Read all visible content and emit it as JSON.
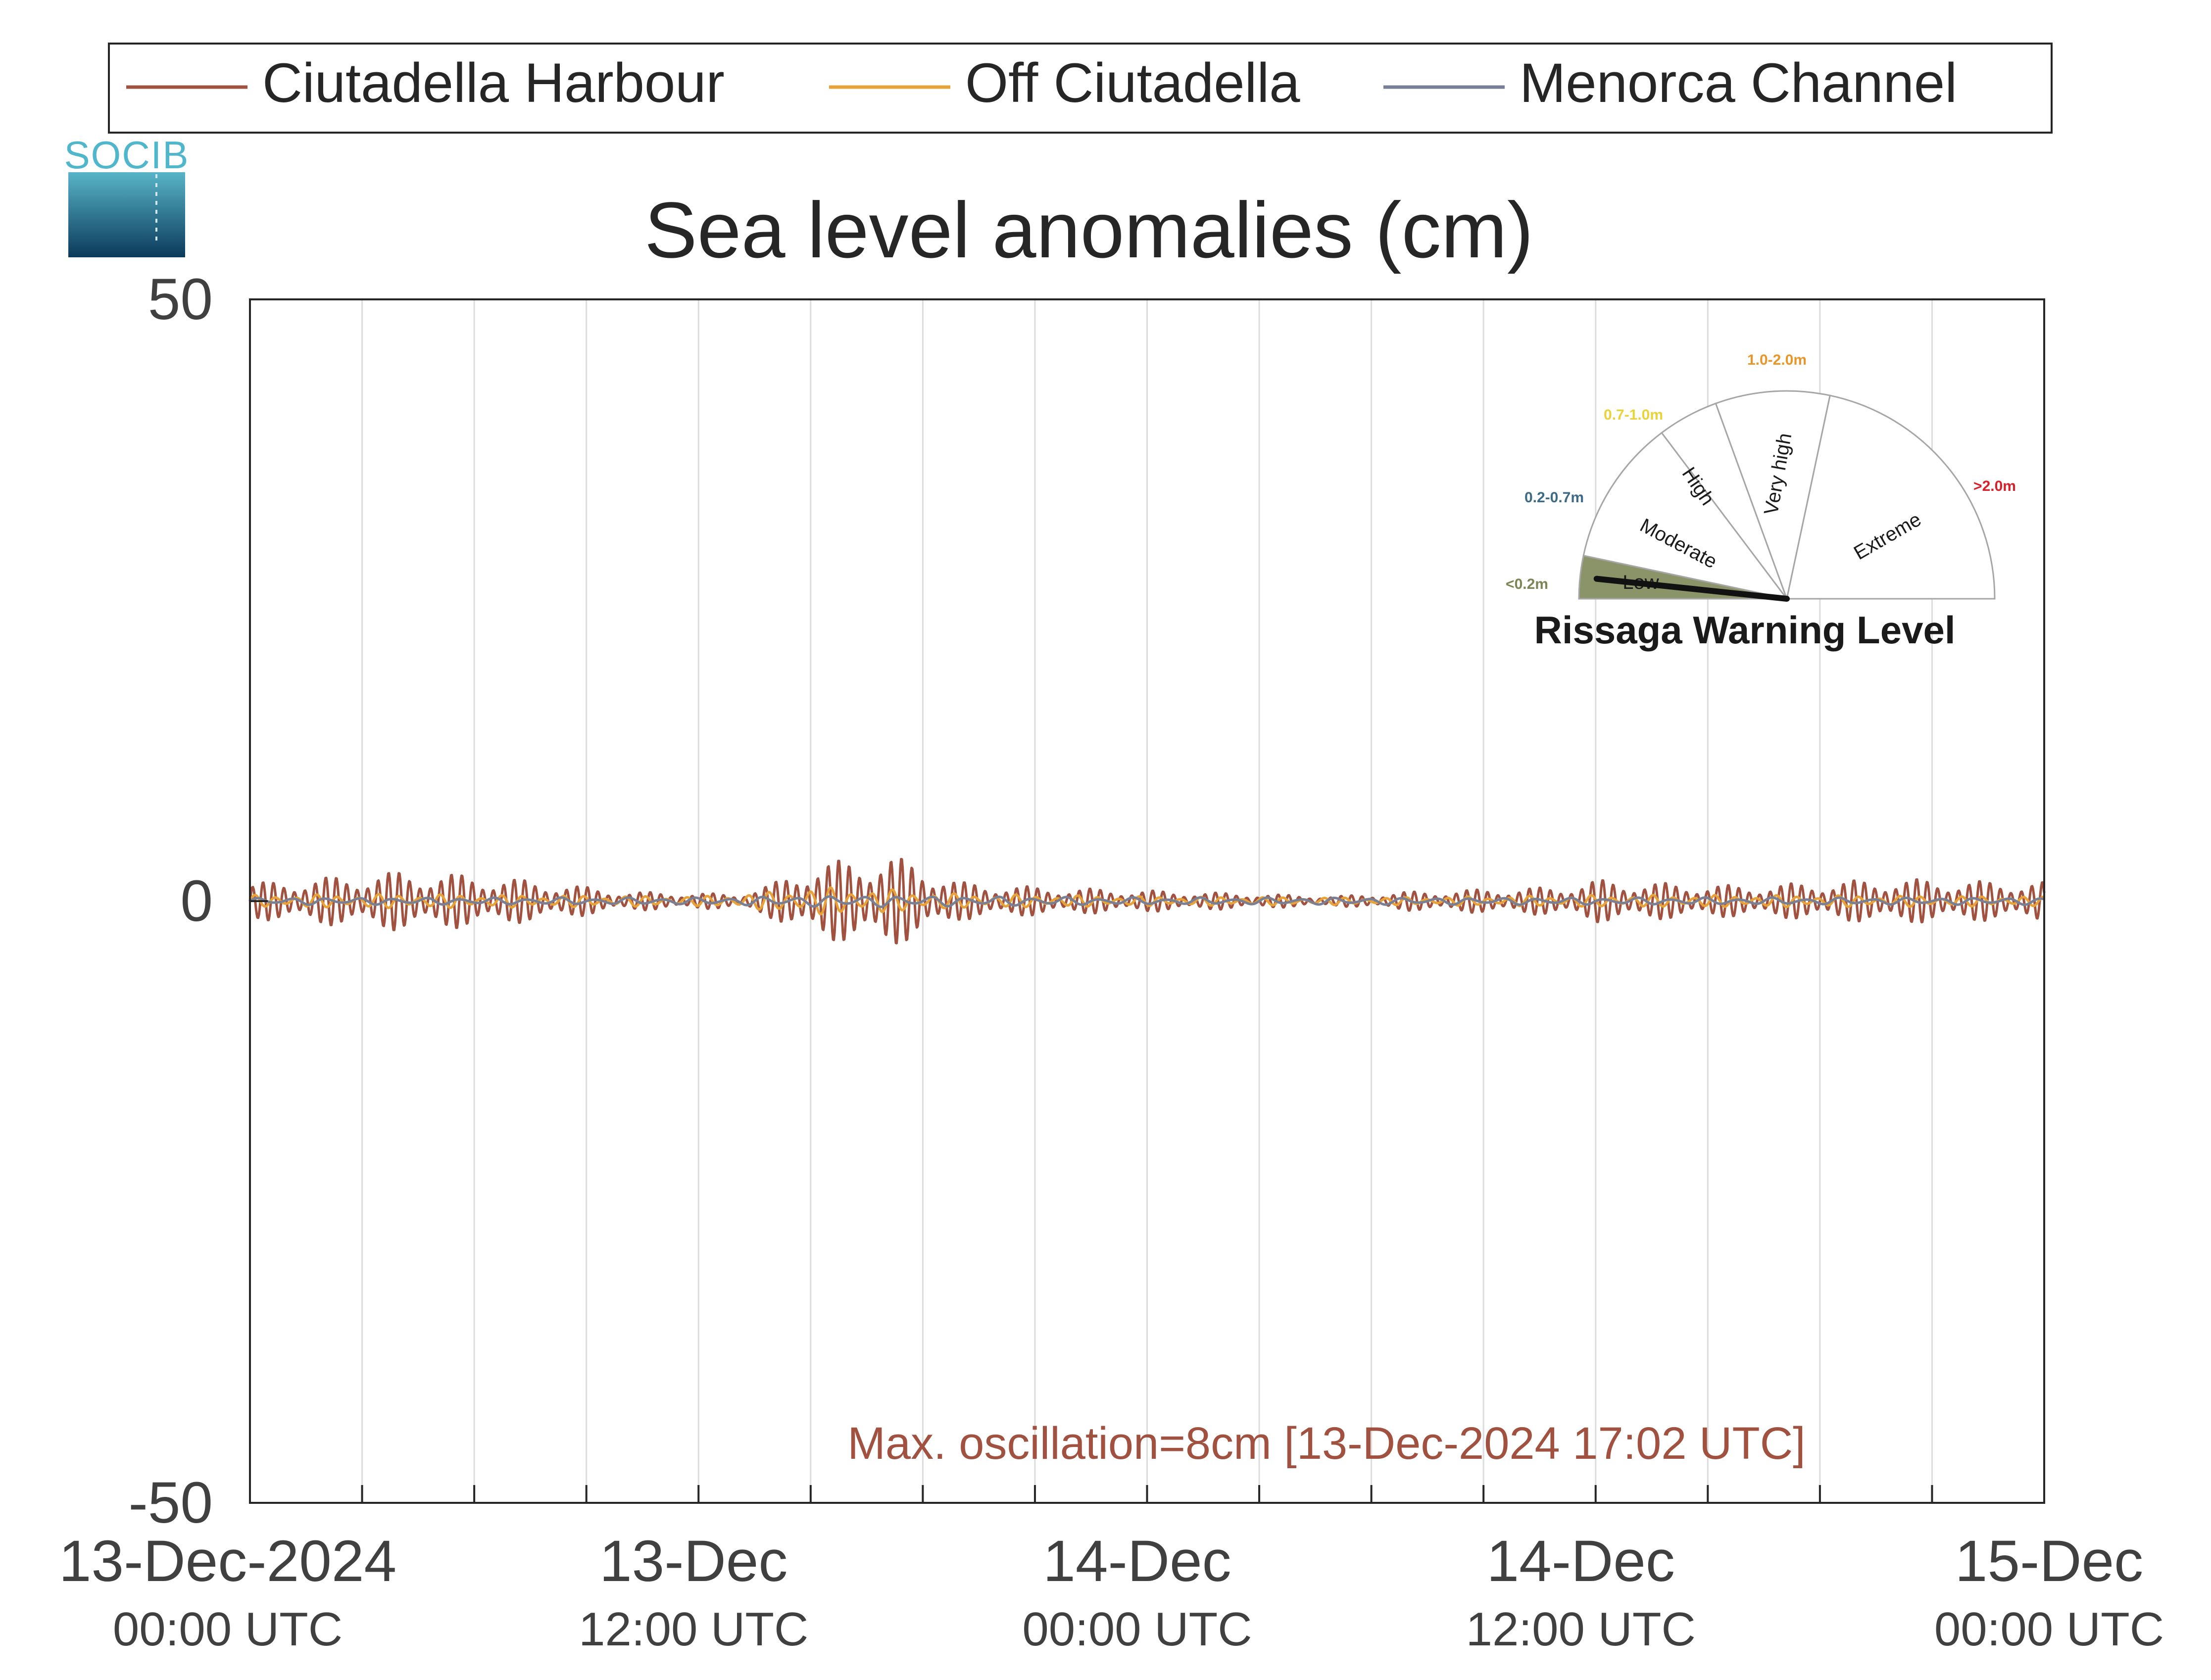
{
  "chart_data": {
    "type": "line",
    "title": "Sea level anomalies (cm)",
    "xlabel": "",
    "ylabel": "",
    "ylim": [
      -50,
      50
    ],
    "yticks": [
      -50,
      0,
      50
    ],
    "xlim": [
      "2024-12-13 00:00",
      "2024-12-15 00:00"
    ],
    "grid": "vertical",
    "legend": "top",
    "xticks": [
      {
        "t": 0,
        "line1": "13-Dec-2024",
        "line2": "00:00 UTC"
      },
      {
        "t": 12,
        "line1": "13-Dec",
        "line2": "12:00 UTC"
      },
      {
        "t": 24,
        "line1": "14-Dec",
        "line2": "00:00 UTC"
      },
      {
        "t": 36,
        "line1": "14-Dec",
        "line2": "12:00 UTC"
      },
      {
        "t": 48,
        "line1": "15-Dec",
        "line2": "00:00 UTC"
      }
    ],
    "series": [
      {
        "name": "Ciutadella Harbour",
        "color": "#a0513f",
        "amplitude_envelope": [
          [
            0,
            1.5
          ],
          [
            2,
            2.0
          ],
          [
            4,
            2.5
          ],
          [
            6,
            2.2
          ],
          [
            8,
            1.6
          ],
          [
            10,
            0.8
          ],
          [
            13,
            0.6
          ],
          [
            14,
            1.5
          ],
          [
            15,
            3.2
          ],
          [
            16,
            3.5
          ],
          [
            17,
            4.0
          ],
          [
            18,
            3.0
          ],
          [
            19,
            1.6
          ],
          [
            21,
            1.2
          ],
          [
            24,
            0.9
          ],
          [
            27,
            0.6
          ],
          [
            29,
            0.4
          ],
          [
            31,
            0.8
          ],
          [
            33,
            1.0
          ],
          [
            35,
            1.2
          ],
          [
            36,
            1.8
          ],
          [
            38,
            1.5
          ],
          [
            40,
            1.3
          ],
          [
            42,
            1.6
          ],
          [
            44,
            1.9
          ],
          [
            46,
            1.7
          ],
          [
            48,
            1.6
          ]
        ]
      },
      {
        "name": "Off Ciutadella",
        "color": "#e8a23a",
        "amplitude_envelope": [
          [
            0,
            0.5
          ],
          [
            4,
            0.6
          ],
          [
            8,
            0.5
          ],
          [
            12,
            0.4
          ],
          [
            14,
            0.8
          ],
          [
            15,
            1.2
          ],
          [
            17,
            1.0
          ],
          [
            19,
            0.6
          ],
          [
            24,
            0.4
          ],
          [
            30,
            0.3
          ],
          [
            36,
            0.5
          ],
          [
            42,
            0.5
          ],
          [
            48,
            0.4
          ]
        ]
      },
      {
        "name": "Menorca Channel",
        "color": "#7a8094",
        "amplitude_envelope": [
          [
            0,
            0.3
          ],
          [
            12,
            0.3
          ],
          [
            16,
            0.5
          ],
          [
            24,
            0.3
          ],
          [
            36,
            0.3
          ],
          [
            48,
            0.3
          ]
        ]
      }
    ],
    "annotation": "Max. oscillation=8cm [13-Dec-2024 17:02 UTC]",
    "annotation_color": "#a0513f"
  },
  "logo": {
    "text": "SOCIB"
  },
  "gauge": {
    "title": "Rissaga Warning Level",
    "pointer_value": "Low",
    "sectors": [
      {
        "label": "Low",
        "range": "<0.2m",
        "range_color": "#7d8556",
        "fill": "#8a9468"
      },
      {
        "label": "Moderate",
        "range": "0.2-0.7m",
        "range_color": "#3d6a86",
        "fill": "#ffffff"
      },
      {
        "label": "High",
        "range": "0.7-1.0m",
        "range_color": "#e8d43a",
        "fill": "#ffffff"
      },
      {
        "label": "Very high",
        "range": "1.0-2.0m",
        "range_color": "#e8962a",
        "fill": "#ffffff"
      },
      {
        "label": "Extreme",
        "range": ">2.0m",
        "range_color": "#d8202a",
        "fill": "#ffffff"
      }
    ]
  }
}
